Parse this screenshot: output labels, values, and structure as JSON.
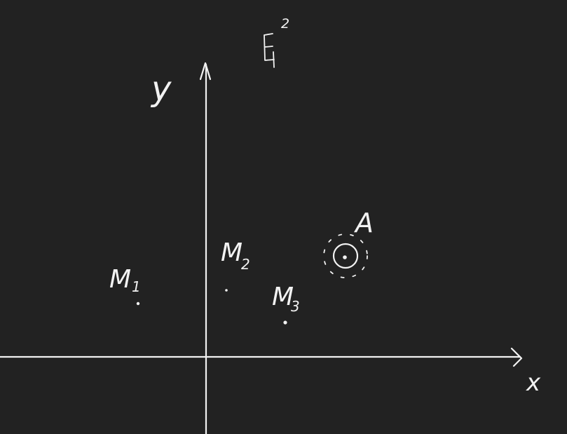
{
  "background_color": "#222222",
  "ink_color": "#f2f2f2",
  "labels": {
    "space": "E",
    "space_superscript": "2",
    "y_axis": "y",
    "x_axis": "x",
    "point_m1": "M",
    "point_m1_index": "1",
    "point_m2": "M",
    "point_m2_index": "2",
    "point_m3": "M",
    "point_m3_index": "3",
    "point_a": "A"
  }
}
